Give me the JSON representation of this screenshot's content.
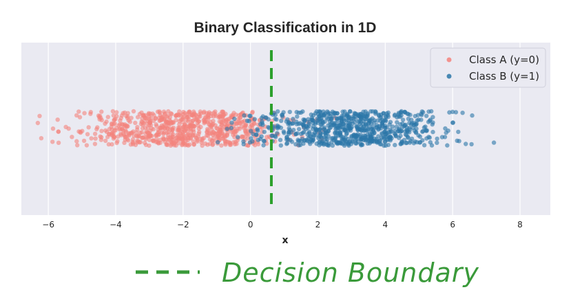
{
  "chart_data": {
    "type": "scatter",
    "title": "Binary Classification in 1D",
    "xlabel": "x",
    "ylabel": "",
    "xlim": [
      -6.8,
      8.9
    ],
    "xticks": [
      -6,
      -4,
      -2,
      0,
      2,
      4,
      6,
      8
    ],
    "xtick_labels": [
      "−6",
      "−4",
      "−2",
      "0",
      "2",
      "4",
      "6",
      "8"
    ],
    "grid": true,
    "legend_position": "top-right",
    "decision_boundary": 0.62,
    "series": [
      {
        "name": "Class A (y=0)",
        "color": "#f4837d",
        "mean": -2.0,
        "std": 1.5,
        "n": 750
      },
      {
        "name": "Class B (y=1)",
        "color": "#2c77a8",
        "mean": 3.0,
        "std": 1.45,
        "n": 750
      }
    ]
  },
  "annotation": {
    "text": "Decision Boundary",
    "color": "#3a9a3a"
  }
}
